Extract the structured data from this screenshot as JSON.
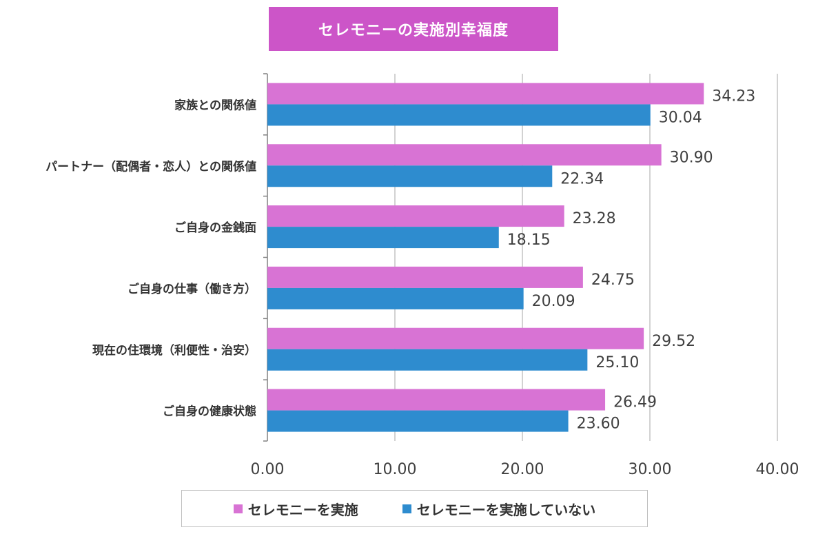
{
  "chart_data": {
    "type": "bar",
    "orientation": "horizontal",
    "title": "セレモニーの実施別幸福度",
    "categories": [
      "家族との関係値",
      "パートナー（配偶者・恋人）との関係値",
      "ご自身の金銭面",
      "ご自身の仕事（働き方）",
      "現在の住環境（利便性・治安）",
      "ご自身の健康状態"
    ],
    "series": [
      {
        "name": "セレモニーを実施",
        "color": "#d873d4",
        "values": [
          34.23,
          30.9,
          23.28,
          24.75,
          29.52,
          26.49
        ]
      },
      {
        "name": "セレモニーを実施していない",
        "color": "#2e8ccf",
        "values": [
          30.04,
          22.34,
          18.15,
          20.09,
          25.1,
          23.6
        ]
      }
    ],
    "value_labels": [
      [
        "34.23",
        "30.90",
        "23.28",
        "24.75",
        "29.52",
        "26.49"
      ],
      [
        "30.04",
        "22.34",
        "18.15",
        "20.09",
        "25.10",
        "23.60"
      ]
    ],
    "xlim": [
      0,
      40
    ],
    "xticks": [
      "0.00",
      "10.00",
      "20.00",
      "30.00",
      "40.00"
    ],
    "grid": "vertical",
    "legend_position": "bottom"
  }
}
